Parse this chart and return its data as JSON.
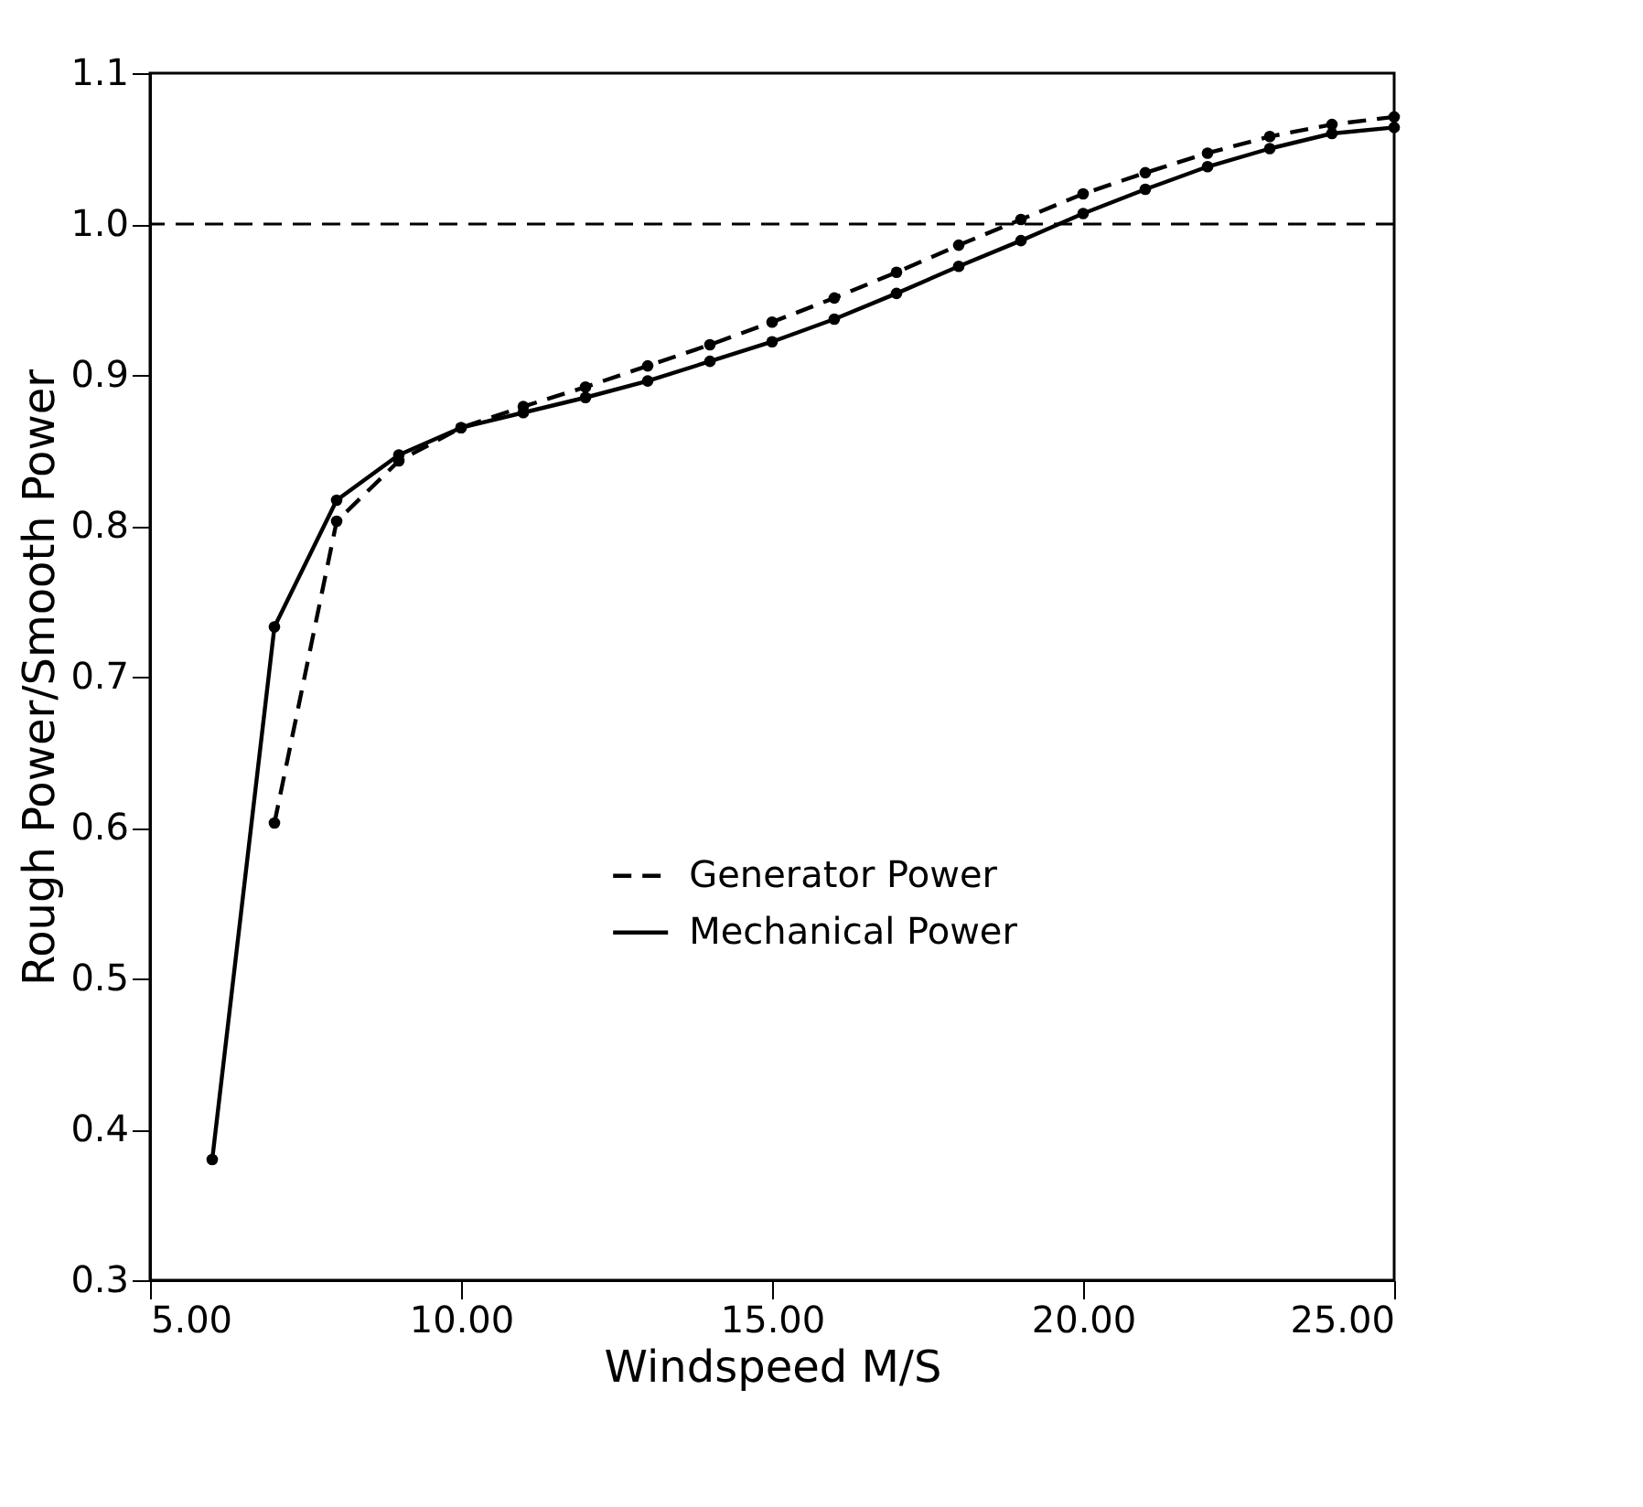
{
  "chart_data": {
    "type": "line",
    "xlabel": "Windspeed M/S",
    "ylabel": "Rough Power/Smooth Power",
    "x": [
      6,
      7,
      8,
      9,
      10,
      11,
      12,
      13,
      14,
      15,
      16,
      17,
      18,
      19,
      20,
      21,
      22,
      23,
      24,
      25
    ],
    "xlim": [
      5,
      25
    ],
    "xticks": [
      {
        "value": 5,
        "label": "5.00"
      },
      {
        "value": 10,
        "label": "10.00"
      },
      {
        "value": 15,
        "label": "15.00"
      },
      {
        "value": 20,
        "label": "20.00"
      },
      {
        "value": 25,
        "label": "25.00"
      }
    ],
    "ylim": [
      0.3,
      1.1
    ],
    "yticks": [
      0.3,
      0.4,
      0.5,
      0.6,
      0.7,
      0.8,
      0.9,
      {
        "value": 1,
        "label": "1.0"
      },
      1.1
    ],
    "series": [
      {
        "name": "Generator Power",
        "color": "#000000",
        "line_style": "dashed",
        "values": [
          null,
          0.603,
          0.803,
          0.843,
          0.865,
          0.879,
          0.892,
          0.906,
          0.92,
          0.935,
          0.951,
          0.968,
          0.986,
          1.003,
          1.02,
          1.034,
          1.047,
          1.058,
          1.066,
          1.071
        ]
      },
      {
        "name": "Mechanical Power",
        "color": "#000000",
        "line_style": "solid",
        "values": [
          0.38,
          0.733,
          0.817,
          0.847,
          0.865,
          0.875,
          0.885,
          0.896,
          0.909,
          0.922,
          0.937,
          0.954,
          0.972,
          0.989,
          1.007,
          1.023,
          1.038,
          1.05,
          1.06,
          1.064
        ]
      }
    ],
    "ref_lines": [
      {
        "axis": "y",
        "value": 1.0,
        "line_style": "dashed",
        "color": "#000000"
      }
    ],
    "marker": "circle",
    "legend": "center",
    "grid": false
  }
}
